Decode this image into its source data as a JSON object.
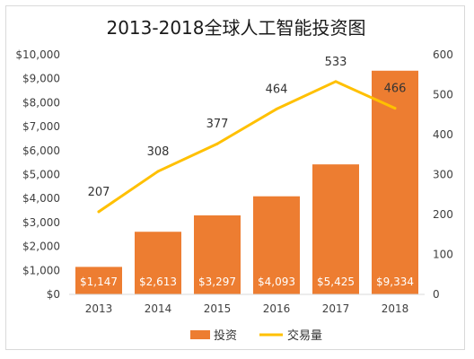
{
  "chart_data": {
    "type": "bar",
    "title": "2013-2018全球人工智能投资图",
    "categories": [
      "2013",
      "2014",
      "2015",
      "2016",
      "2017",
      "2018"
    ],
    "series": [
      {
        "name": "投资",
        "type": "bar",
        "axis": "left",
        "color": "#ed7d31",
        "values": [
          1147,
          2613,
          3297,
          4093,
          5425,
          9334
        ],
        "labels": [
          "$1,147",
          "$2,613",
          "$3,297",
          "$4,093",
          "$5,425",
          "$9,334"
        ]
      },
      {
        "name": "交易量",
        "type": "line",
        "axis": "right",
        "color": "#ffc000",
        "values": [
          207,
          308,
          377,
          464,
          533,
          466
        ],
        "labels": [
          "207",
          "308",
          "377",
          "464",
          "533",
          "466"
        ]
      }
    ],
    "y_left": {
      "min": 0,
      "max": 10000,
      "step": 1000,
      "tick_labels": [
        "$0",
        "$1,000",
        "$2,000",
        "$3,000",
        "$4,000",
        "$5,000",
        "$6,000",
        "$7,000",
        "$8,000",
        "$9,000",
        "$10,000"
      ]
    },
    "y_right": {
      "min": 0,
      "max": 600,
      "step": 100,
      "tick_labels": [
        "0",
        "100",
        "200",
        "300",
        "400",
        "500",
        "600"
      ]
    },
    "grid": false,
    "legend_position": "bottom"
  }
}
